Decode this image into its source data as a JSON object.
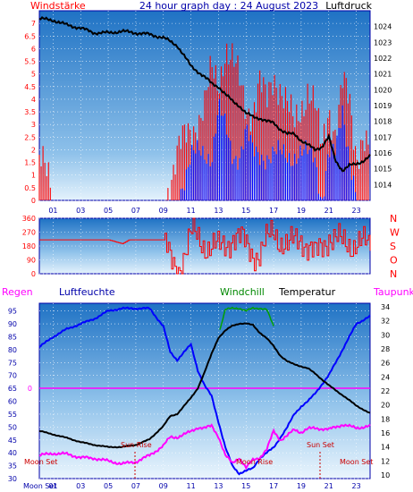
{
  "header": {
    "title": "24 hour graph day : 24 August 2023",
    "left_label": "Windstärke",
    "right_label": "Luftdruck"
  },
  "x_ticks": [
    "01",
    "03",
    "05",
    "07",
    "09",
    "11",
    "13",
    "15",
    "17",
    "19",
    "21",
    "23"
  ],
  "colors": {
    "wind": "#ff0000",
    "gust": "#0000ff",
    "pressure": "#000000",
    "humidity": "#0000ff",
    "windchill": "#00a000",
    "temperature": "#000000",
    "dewpoint": "#ff00ff",
    "rain": "#ff00ff",
    "frame": "#0000aa"
  },
  "chart_data": [
    {
      "type": "line",
      "title": "24 hour graph day : 24 August 2023",
      "ylabel": "Windstärke",
      "y2label": "Luftdruck",
      "ylim": [
        0,
        7.5
      ],
      "y_ticks": [
        "0",
        "0.5",
        "1",
        "1.5",
        "2",
        "2.5",
        "3",
        "3.5",
        "4",
        "4.5",
        "5",
        "5.5",
        "6",
        "6.5",
        "7"
      ],
      "y2lim": [
        1013,
        1025
      ],
      "y2_ticks": [
        "1014",
        "1015",
        "1016",
        "1017",
        "1018",
        "1019",
        "1020",
        "1021",
        "1022",
        "1023",
        "1024"
      ],
      "x_hours": [
        0,
        1,
        2,
        3,
        4,
        5,
        6,
        7,
        8,
        9,
        10,
        11,
        12,
        12.5,
        13,
        13.5,
        14,
        14.5,
        15,
        15.5,
        16,
        16.5,
        17,
        17.5,
        18,
        18.5,
        19,
        19.5,
        20,
        20.5,
        21,
        21.5,
        22,
        22.5,
        23,
        23.5,
        24
      ],
      "series": [
        {
          "key": "pressure",
          "values": [
            1024.5,
            1024.4,
            1024.1,
            1023.9,
            1023.6,
            1023.6,
            1023.7,
            1023.6,
            1023.5,
            1023.3,
            1022.8,
            1021.5,
            1020.8,
            1020.4,
            1020.2,
            1019.7,
            1019.3,
            1019,
            1018.5,
            1018.3,
            1018.2,
            1018,
            1017.9,
            1017.5,
            1017.2,
            1017.2,
            1016.8,
            1016.5,
            1016.2,
            1016.4,
            1017,
            1015.5,
            1014.9,
            1015.2,
            1015.3,
            1015.5,
            1015.8
          ]
        },
        {
          "key": "wind",
          "values": [
            1.8,
            0,
            0,
            0,
            0,
            0,
            0,
            0,
            0,
            0,
            1.8,
            2.8,
            3.7,
            5,
            4.6,
            6.2,
            5.5,
            4.6,
            3.7,
            3.7,
            4.6,
            3.7,
            5,
            4.6,
            3.7,
            2.8,
            3.7,
            4.6,
            3.7,
            1.8,
            3.7,
            2.8,
            4.6,
            3.7,
            1.8,
            2.8,
            1.8
          ]
        },
        {
          "key": "gust",
          "values": [
            0,
            0,
            0,
            0,
            0,
            0,
            0,
            0,
            0,
            0,
            0,
            1.8,
            1.8,
            1.8,
            3.7,
            2.8,
            1.8,
            1.8,
            2.8,
            1.8,
            1.8,
            1.8,
            1.8,
            1.8,
            1.8,
            1.8,
            1.8,
            1.8,
            1.8,
            0,
            1.8,
            1.8,
            3.7,
            1.8,
            0,
            0,
            0
          ]
        }
      ]
    },
    {
      "type": "line",
      "ylabel": "",
      "ylim": [
        0,
        360
      ],
      "y_ticks": [
        "0",
        "90",
        "180",
        "270",
        "360"
      ],
      "direction_labels": [
        "N",
        "W",
        "S",
        "O",
        "N"
      ],
      "x_hours": [
        0,
        2,
        3,
        4,
        5,
        6,
        6.5,
        7,
        8,
        9,
        9.5,
        10,
        11,
        12,
        13,
        14,
        15,
        16,
        17,
        18,
        19,
        20,
        21,
        22,
        23,
        24
      ],
      "series": [
        {
          "key": "direction",
          "values": [
            220,
            220,
            220,
            220,
            220,
            195,
            220,
            220,
            220,
            220,
            60,
            30,
            250,
            200,
            150,
            250,
            180,
            120,
            290,
            160,
            250,
            100,
            260,
            180,
            220,
            150
          ]
        }
      ]
    },
    {
      "type": "line",
      "left_label": "Regen",
      "humidity_label": "Luftfeuchte",
      "windchill_label": "Windchill",
      "temperature_label": "Temperatur",
      "dewpoint_label": "Taupunkt",
      "ylim": [
        30,
        98
      ],
      "y_ticks": [
        "30",
        "35",
        "40",
        "45",
        "50",
        "55",
        "60",
        "65",
        "70",
        "75",
        "80",
        "85",
        "90",
        "95"
      ],
      "y2lim": [
        9.5,
        34.5
      ],
      "y2_ticks": [
        "10",
        "12",
        "14",
        "16",
        "18",
        "20",
        "22",
        "24",
        "26",
        "28",
        "30",
        "32",
        "34"
      ],
      "rain_value_label": "0",
      "x_hours": [
        0,
        1,
        2,
        3,
        4,
        5,
        6,
        7,
        8,
        9,
        9.5,
        10,
        11,
        11.5,
        12,
        12.5,
        13,
        13.5,
        14,
        14.5,
        15,
        15.5,
        16,
        16.5,
        17,
        17.5,
        18,
        18.5,
        19,
        19.5,
        20,
        21,
        22,
        23,
        24
      ],
      "series": [
        {
          "key": "humidity",
          "values": [
            81,
            85,
            88,
            90,
            92,
            95,
            96,
            96,
            96,
            89,
            79,
            76,
            82,
            72,
            66,
            62,
            52,
            42,
            35,
            32,
            33,
            34,
            38,
            40,
            42,
            46,
            50,
            55,
            58,
            60,
            63,
            70,
            80,
            90,
            93
          ]
        },
        {
          "key": "temperature",
          "values": [
            16.3,
            15.8,
            15.3,
            14.7,
            14.3,
            14,
            14,
            14.3,
            15.1,
            17,
            18.4,
            18.7,
            21,
            22.4,
            24.7,
            27.3,
            29.6,
            30.6,
            31.3,
            31.6,
            31.6,
            31.4,
            30.3,
            29.5,
            28.4,
            27,
            26.2,
            25.8,
            25.5,
            25.2,
            24.5,
            22.8,
            21.4,
            19.9,
            18.8
          ]
        },
        {
          "key": "windchill",
          "values": [
            null,
            null,
            null,
            null,
            null,
            null,
            null,
            null,
            null,
            null,
            null,
            null,
            null,
            null,
            null,
            null,
            30,
            33.6,
            33.8,
            33.8,
            33.4,
            33.8,
            33.8,
            33.6,
            31.2,
            null,
            null,
            null,
            null,
            null,
            null,
            null,
            null,
            null,
            null
          ]
        },
        {
          "key": "dewpoint",
          "values": [
            12.8,
            13.1,
            13,
            12.5,
            12.4,
            12,
            11.6,
            11.9,
            12.8,
            14.2,
            15.4,
            15.4,
            16.2,
            16.8,
            16.7,
            17,
            15.5,
            12.8,
            11.7,
            12.5,
            11,
            12.2,
            12.5,
            13.6,
            16.3,
            15,
            15.6,
            16.5,
            16.1,
            16.6,
            16.7,
            16.5,
            17.2,
            16.7,
            17
          ]
        }
      ]
    }
  ],
  "annotations": {
    "sun_rise": "Sun Rise",
    "sun_set": "Sun Set",
    "moon_set": "Moon Set",
    "moon_rise": "Moon Rise"
  }
}
